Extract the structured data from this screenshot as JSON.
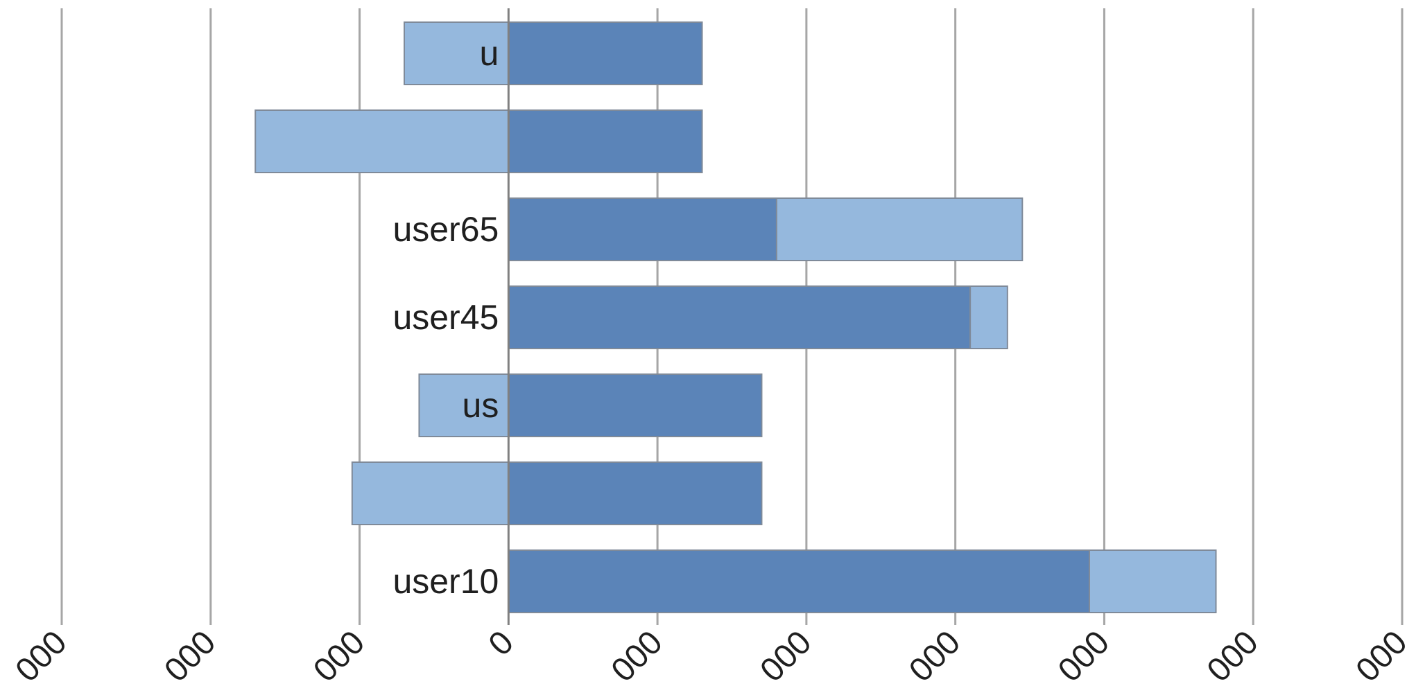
{
  "chart_data": {
    "type": "bar",
    "orientation": "horizontal",
    "stacked": true,
    "title": "",
    "xlabel": "",
    "ylabel": "",
    "categories": [
      "u",
      "",
      "user65",
      "user45",
      "us",
      "",
      "user10"
    ],
    "series": [
      {
        "values": [
          1300,
          1300,
          1800,
          3100,
          1700,
          1700,
          3900
        ],
        "color": "#5b84b8"
      },
      {
        "values": [
          -700,
          -1700,
          1650,
          250,
          -600,
          -1050,
          850
        ],
        "color": "#95b8dd"
      }
    ],
    "xlim": [
      -3000,
      6000
    ],
    "xticks": [
      -3000,
      -2000,
      -1000,
      0,
      1000,
      2000,
      3000,
      4000,
      5000,
      6000
    ],
    "xtick_labels": [
      "000",
      "000",
      "000",
      "0",
      "000",
      "000",
      "000",
      "000",
      "000",
      "000"
    ],
    "grid": true,
    "legend": "none"
  }
}
